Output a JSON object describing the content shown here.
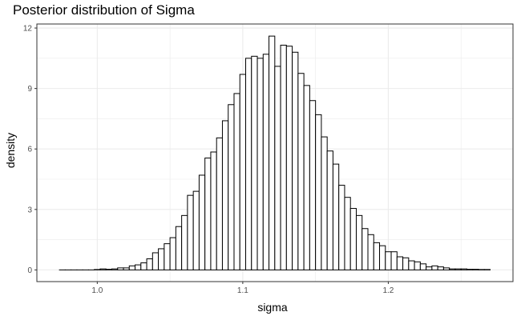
{
  "chart_data": {
    "type": "bar",
    "title": "Posterior distribution of Sigma",
    "xlabel": "sigma",
    "ylabel": "density",
    "xlim": [
      0.9585,
      1.2857
    ],
    "ylim": [
      -0.58,
      12.2
    ],
    "x_ticks": [
      1.0,
      1.1,
      1.2
    ],
    "x_tick_labels": [
      "1.0",
      "1.1",
      "1.2"
    ],
    "y_ticks": [
      0,
      3,
      6,
      9,
      12
    ],
    "y_tick_labels": [
      "0",
      "3",
      "6",
      "9",
      "12"
    ],
    "grid": true,
    "legend": "none",
    "bin_start": 0.974,
    "bin_width": 0.004,
    "bar_stroke": "#000000",
    "bar_fill": "#ffffff",
    "grid_color": "#ebebeb",
    "panel_border": "#333333",
    "values": [
      0.0,
      0.0,
      0.0,
      0.0,
      0.0,
      0.0,
      0.02,
      0.05,
      0.03,
      0.05,
      0.1,
      0.1,
      0.2,
      0.25,
      0.35,
      0.55,
      0.85,
      1.05,
      1.3,
      1.6,
      2.15,
      2.7,
      3.7,
      3.9,
      4.7,
      5.55,
      5.85,
      6.55,
      7.4,
      8.2,
      8.75,
      9.7,
      10.5,
      10.6,
      10.5,
      10.7,
      11.6,
      10.1,
      11.15,
      11.1,
      10.8,
      9.75,
      9.15,
      8.4,
      7.7,
      6.6,
      5.9,
      5.25,
      4.2,
      3.6,
      3.05,
      2.7,
      2.05,
      1.75,
      1.35,
      1.2,
      0.9,
      0.9,
      0.65,
      0.6,
      0.45,
      0.4,
      0.3,
      0.15,
      0.2,
      0.15,
      0.1,
      0.05,
      0.05,
      0.05,
      0.03,
      0.03,
      0.02,
      0.02
    ]
  }
}
